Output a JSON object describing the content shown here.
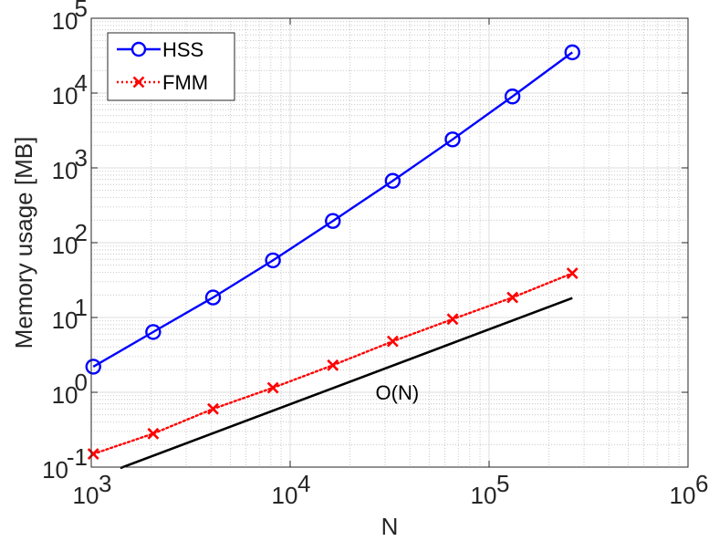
{
  "chart_data": {
    "type": "line",
    "xscale": "log",
    "yscale": "log",
    "xlabel": "N",
    "ylabel": "Memory usage [MB]",
    "xlim": [
      1000,
      1000000
    ],
    "ylim": [
      0.1,
      100000
    ],
    "grid": true,
    "legend_position": "top-left",
    "x_ticks": [
      {
        "value": 1000,
        "base": "10",
        "exp": "3"
      },
      {
        "value": 10000,
        "base": "10",
        "exp": "4"
      },
      {
        "value": 100000,
        "base": "10",
        "exp": "5"
      },
      {
        "value": 1000000,
        "base": "10",
        "exp": "6"
      }
    ],
    "y_ticks": [
      {
        "value": 0.1,
        "base": "10",
        "exp": "-1"
      },
      {
        "value": 1,
        "base": "10",
        "exp": "0"
      },
      {
        "value": 10,
        "base": "10",
        "exp": "1"
      },
      {
        "value": 100,
        "base": "10",
        "exp": "2"
      },
      {
        "value": 1000,
        "base": "10",
        "exp": "3"
      },
      {
        "value": 10000,
        "base": "10",
        "exp": "4"
      },
      {
        "value": 100000,
        "base": "10",
        "exp": "5"
      }
    ],
    "series": [
      {
        "name": "HSS",
        "color": "#0000ff",
        "line": "solid",
        "marker": "circle",
        "x": [
          1024,
          2048,
          4096,
          8192,
          16384,
          32768,
          65536,
          131072,
          262144
        ],
        "y": [
          2.2,
          6.4,
          18.5,
          58,
          195,
          670,
          2400,
          9000,
          35000
        ]
      },
      {
        "name": "FMM",
        "color": "#ff0000",
        "line": "dotted",
        "marker": "x",
        "x": [
          1024,
          2048,
          4096,
          8192,
          16384,
          32768,
          65536,
          131072,
          262144
        ],
        "y": [
          0.15,
          0.28,
          0.6,
          1.15,
          2.3,
          4.8,
          9.5,
          18.5,
          39
        ]
      }
    ],
    "reference_line": {
      "label": "O(N)",
      "color": "#000000",
      "x": [
        1400,
        262144
      ],
      "y": [
        0.097,
        18.2
      ]
    },
    "annotations": [
      {
        "text": "O(N)",
        "x": 50000,
        "y": 1.0
      }
    ]
  }
}
